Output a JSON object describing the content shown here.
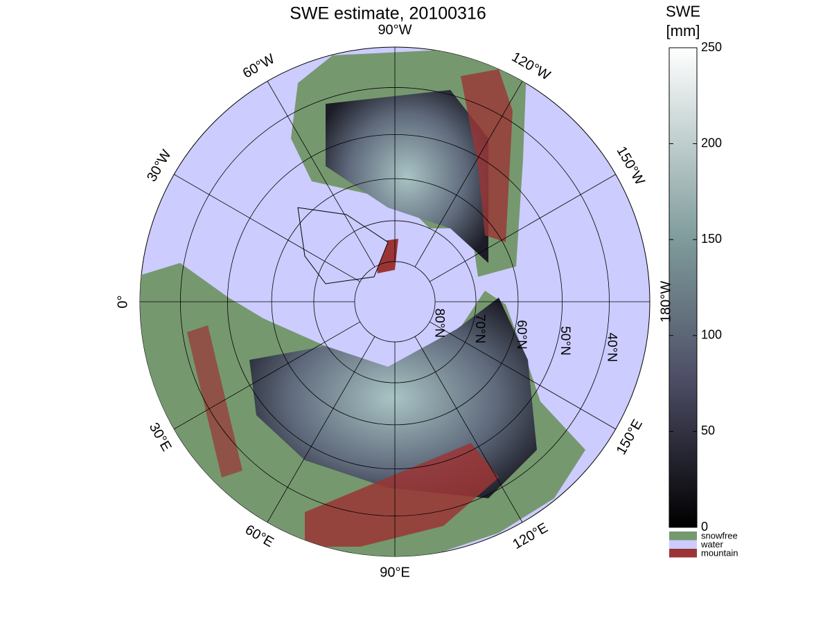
{
  "title": "SWE estimate, 20100316",
  "map": {
    "longitude_ticks": [
      {
        "value": -90,
        "label": "90°W"
      },
      {
        "value": -120,
        "label": "120°W"
      },
      {
        "value": -150,
        "label": "150°W"
      },
      {
        "value": 180,
        "label": "180°W"
      },
      {
        "value": 150,
        "label": "150°E"
      },
      {
        "value": 120,
        "label": "120°E"
      },
      {
        "value": 90,
        "label": "90°E"
      },
      {
        "value": 60,
        "label": "60°E"
      },
      {
        "value": 30,
        "label": "30°E"
      },
      {
        "value": 0,
        "label": "0°"
      },
      {
        "value": -30,
        "label": "30°W"
      },
      {
        "value": -60,
        "label": "60°W"
      }
    ],
    "latitude_ticks": [
      {
        "value": 80,
        "label": "80°N"
      },
      {
        "value": 70,
        "label": "70°N"
      },
      {
        "value": 60,
        "label": "60°N"
      },
      {
        "value": 50,
        "label": "50°N"
      },
      {
        "value": 40,
        "label": "40°N"
      }
    ],
    "water_color": "#ccccff"
  },
  "colorbar": {
    "label": [
      "SWE",
      "[mm]"
    ],
    "lim": [
      0,
      250
    ],
    "ticks": [
      0,
      50,
      100,
      150,
      200,
      250
    ]
  },
  "legend": [
    {
      "name": "snowfree",
      "color": "#76986f"
    },
    {
      "name": "water",
      "color": "#ccccff"
    },
    {
      "name": "mountain",
      "color": "#9b3535"
    }
  ]
}
